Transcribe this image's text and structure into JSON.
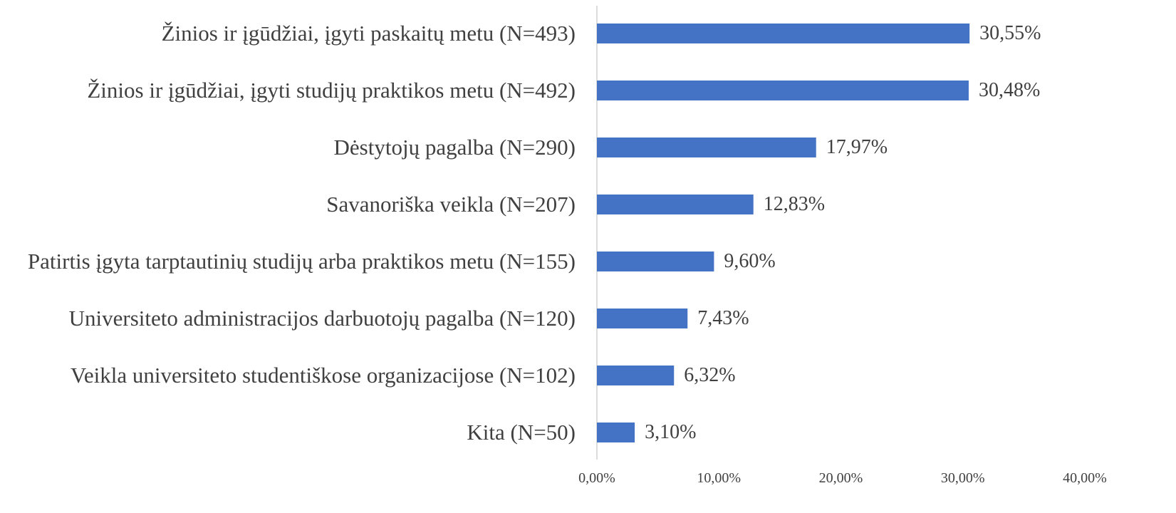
{
  "chart_data": {
    "type": "bar",
    "orientation": "horizontal",
    "categories": [
      "Žinios ir įgūdžiai, įgyti paskaitų metu (N=493)",
      "Žinios ir įgūdžiai, įgyti studijų praktikos metu (N=492)",
      "Dėstytojų pagalba (N=290)",
      "Savanoriška veikla (N=207)",
      "Patirtis įgyta tarptautinių studijų arba praktikos metu (N=155)",
      "Universiteto administracijos darbuotojų pagalba (N=120)",
      "Veikla universiteto studentiškose organizacijose (N=102)",
      "Kita (N=50)"
    ],
    "values": [
      30.55,
      30.48,
      17.97,
      12.83,
      9.6,
      7.43,
      6.32,
      3.1
    ],
    "value_labels": [
      "30,55%",
      "30,48%",
      "17,97%",
      "12,83%",
      "9,60%",
      "7,43%",
      "6,32%",
      "3,10%"
    ],
    "color": "#4472c4",
    "xlim": [
      0,
      40
    ],
    "xticks": [
      {
        "value": 0,
        "label": "0,00%"
      },
      {
        "value": 10,
        "label": "10,00%"
      },
      {
        "value": 20,
        "label": "20,00%"
      },
      {
        "value": 30,
        "label": "30,00%"
      },
      {
        "value": 40,
        "label": "40,00%"
      }
    ],
    "grid": false
  }
}
